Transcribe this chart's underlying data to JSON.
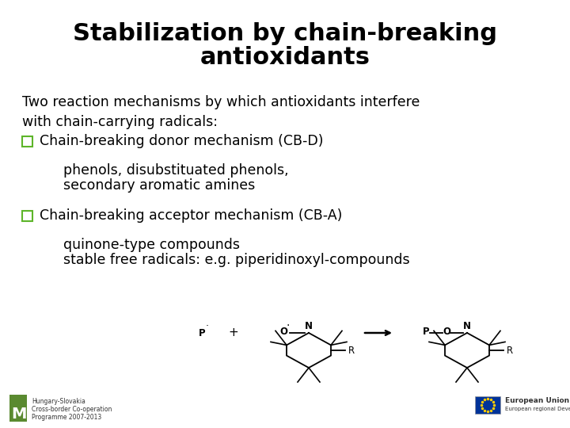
{
  "title_line1": "Stabilization by chain-breaking",
  "title_line2": "antioxidants",
  "title_fontsize": 22,
  "body_fontsize": 12.5,
  "small_fontsize": 9,
  "background_color": "#ffffff",
  "text_color": "#000000",
  "checkbox_color": "#5db52a",
  "intro_text": "Two reaction mechanisms by which antioxidants interfere\nwith chain-carrying radicals:",
  "bullet1_header": "Chain-breaking donor mechanism (CB-D)",
  "bullet1_detail_line1": "phenols, disubstituated phenols,",
  "bullet1_detail_line2": "secondary aromatic amines",
  "bullet2_header": "Chain-breaking acceptor mechanism (CB-A)",
  "bullet2_detail_line1": "quinone-type compounds",
  "bullet2_detail_line2": "stable free radicals: e.g. piperidinoxyl-compounds",
  "footer_left_lines": [
    "Hungary-Slovakia",
    "Cross-border Co-operation",
    "Programme 2007-2013"
  ],
  "footer_right_line1": "European Union",
  "footer_right_line2": "European regional Development - und",
  "eu_flag_color": "#003399",
  "eu_flag_star_color": "#ffcc00"
}
